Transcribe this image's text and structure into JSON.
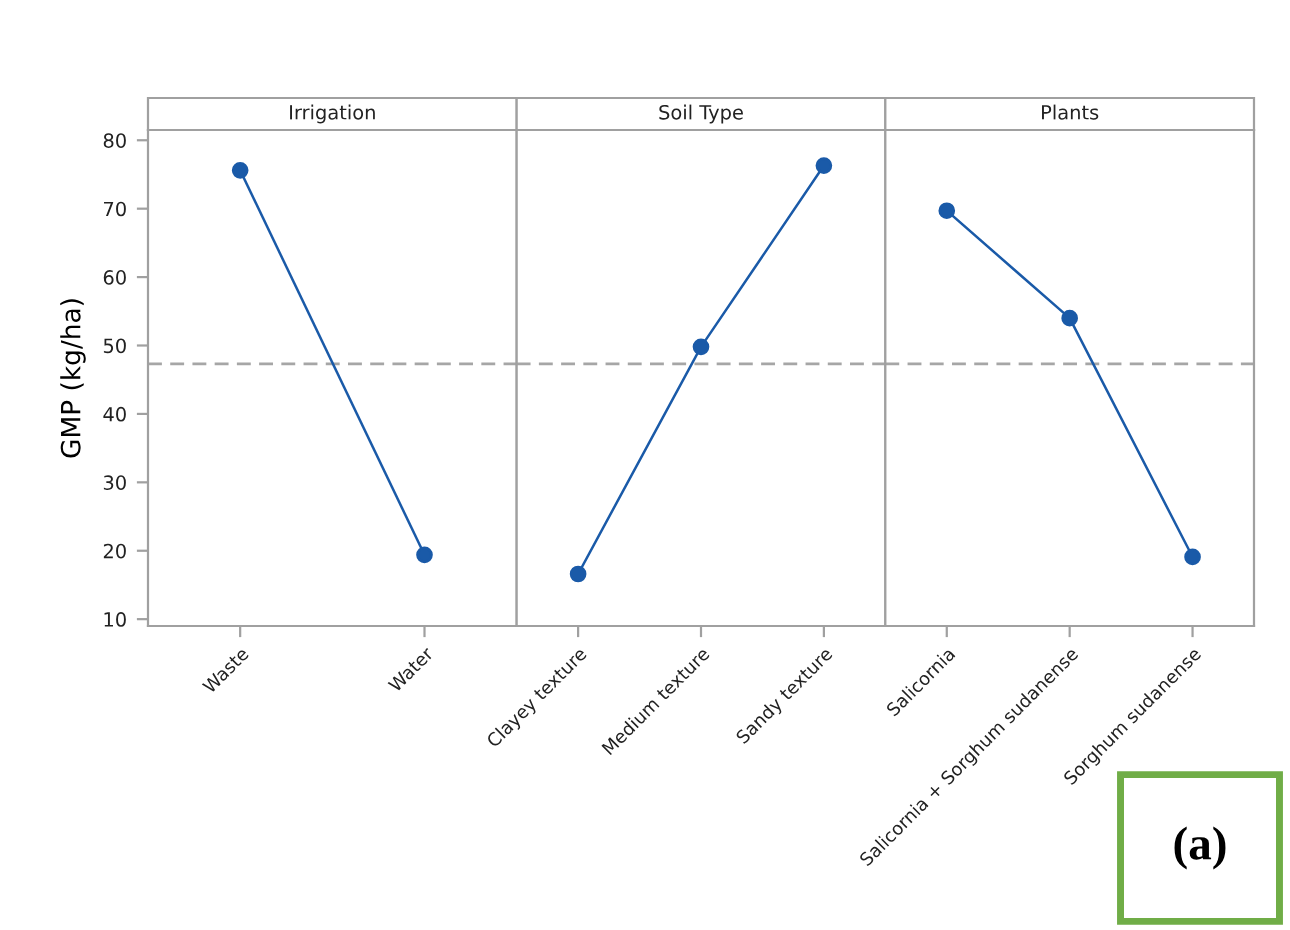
{
  "chart_data": [
    {
      "type": "line",
      "title": "Irrigation",
      "ylabel": "GMP (kg/ha)",
      "categories": [
        "Waste",
        "Water"
      ],
      "values": [
        75.6,
        19.4
      ],
      "color": "#1a5aa8",
      "marker": "circle",
      "line_style": "solid",
      "ylim": [
        9,
        81.5
      ],
      "yticks": [
        10,
        20,
        30,
        40,
        50,
        60,
        70,
        80
      ],
      "ref_lines": [
        {
          "axis": "y",
          "value": 47.3,
          "color": "#a6a6a6",
          "line_style": "dashed"
        }
      ]
    },
    {
      "type": "line",
      "title": "Soil Type",
      "categories": [
        "Clayey texture",
        "Medium texture",
        "Sandy texture"
      ],
      "values": [
        16.6,
        49.8,
        76.3
      ],
      "color": "#1a5aa8",
      "marker": "circle",
      "line_style": "solid",
      "ylim": [
        9,
        81.5
      ],
      "tick_labels": "x",
      "ref_lines": [
        {
          "axis": "y",
          "value": 47.3,
          "color": "#a6a6a6",
          "line_style": "dashed"
        }
      ]
    },
    {
      "type": "line",
      "title": "Plants",
      "categories": [
        "Salicornia",
        "Salicornia + Sorghum sudanense",
        "Sorghum sudanense"
      ],
      "values": [
        69.7,
        54.0,
        19.1
      ],
      "color": "#1a5aa8",
      "marker": "circle",
      "line_style": "solid",
      "ylim": [
        9,
        81.5
      ],
      "tick_labels": "x",
      "ref_lines": [
        {
          "axis": "y",
          "value": 47.3,
          "color": "#a6a6a6",
          "line_style": "dashed"
        }
      ],
      "annotations": [
        "(a)"
      ]
    }
  ]
}
